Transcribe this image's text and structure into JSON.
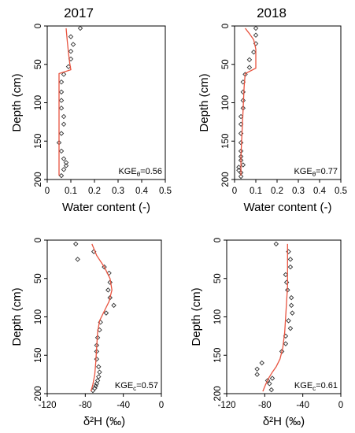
{
  "figure": {
    "titles": [
      "2017",
      "2018"
    ]
  },
  "chart_data": [
    {
      "type": "line",
      "title": "2017",
      "xlabel": "Water content (-)",
      "ylabel": "Depth (cm)",
      "xlim": [
        0,
        0.5
      ],
      "ylim": [
        200,
        0
      ],
      "xticks": [
        0,
        0.1,
        0.2,
        0.3,
        0.4,
        0.5
      ],
      "xtick_labels": [
        "0",
        "0.1",
        "0.2",
        "0.3",
        "0.4",
        "0.5"
      ],
      "yticks": [
        0,
        50,
        100,
        150,
        200
      ],
      "ytick_labels": [
        "0",
        "50",
        "100",
        "150",
        "200"
      ],
      "annotation": "KGEθ=0.56",
      "annotation_parts": {
        "main": "KGE",
        "sub": "θ",
        "rest": "=0.56"
      },
      "series": [
        {
          "kind": "observed",
          "marker": "open-diamond",
          "x": [
            0.14,
            0.1,
            0.11,
            0.1,
            0.1,
            0.09,
            0.07,
            0.06,
            0.06,
            0.06,
            0.06,
            0.07,
            0.07,
            0.06,
            0.05,
            0.06,
            0.07,
            0.08,
            0.08,
            0.07,
            0.06
          ],
          "y": [
            3,
            14,
            24,
            33,
            43,
            53,
            63,
            73,
            86,
            97,
            107,
            118,
            128,
            140,
            152,
            163,
            173,
            178,
            182,
            187,
            195
          ]
        },
        {
          "kind": "simulated",
          "x": [
            0.08,
            0.085,
            0.09,
            0.095,
            0.1,
            0.05,
            0.05,
            0.05,
            0.05,
            0.05,
            0.05
          ],
          "y": [
            3,
            20,
            35,
            48,
            57,
            62,
            80,
            110,
            140,
            170,
            195
          ]
        }
      ]
    },
    {
      "type": "line",
      "title": "2018",
      "xlabel": "Water content (-)",
      "ylabel": "Depth (cm)",
      "xlim": [
        0,
        0.5
      ],
      "ylim": [
        200,
        0
      ],
      "xticks": [
        0,
        0.1,
        0.2,
        0.3,
        0.4,
        0.5
      ],
      "xtick_labels": [
        "0",
        "0.1",
        "0.2",
        "0.3",
        "0.4",
        "0.5"
      ],
      "yticks": [
        0,
        50,
        100,
        150,
        200
      ],
      "ytick_labels": [
        "0",
        "50",
        "100",
        "150",
        "200"
      ],
      "annotation": "KGEθ=0.77",
      "annotation_parts": {
        "main": "KGE",
        "sub": "θ",
        "rest": "=0.77"
      },
      "series": [
        {
          "kind": "observed",
          "marker": "open-diamond",
          "x": [
            0.1,
            0.1,
            0.1,
            0.09,
            0.07,
            0.07,
            0.05,
            0.04,
            0.04,
            0.04,
            0.04,
            0.03,
            0.03,
            0.03,
            0.03,
            0.03,
            0.03,
            0.03,
            0.04,
            0.02,
            0.02,
            0.03,
            0.03
          ],
          "y": [
            3,
            12,
            23,
            34,
            44,
            54,
            63,
            73,
            86,
            97,
            107,
            118,
            128,
            140,
            152,
            163,
            170,
            175,
            181,
            184,
            188,
            191,
            196
          ]
        },
        {
          "kind": "simulated",
          "x": [
            0.05,
            0.07,
            0.09,
            0.1,
            0.1,
            0.05,
            0.045,
            0.04,
            0.035,
            0.03,
            0.03
          ],
          "y": [
            3,
            10,
            18,
            30,
            55,
            62,
            80,
            110,
            140,
            170,
            195
          ]
        }
      ]
    },
    {
      "type": "line",
      "xlabel": "δ²H (‰)",
      "ylabel": "Depth (cm)",
      "xlim": [
        -120,
        0
      ],
      "ylim": [
        200,
        0
      ],
      "xticks": [
        -120,
        -80,
        -40,
        0
      ],
      "xtick_labels": [
        "-120",
        "-80",
        "-40",
        "0"
      ],
      "yticks": [
        0,
        50,
        100,
        150,
        200
      ],
      "ytick_labels": [
        "0",
        "50",
        "100",
        "150",
        "200"
      ],
      "annotation": "KGEc=0.57",
      "annotation_parts": {
        "main": "KGE",
        "sub": "c",
        "rest": "=0.57"
      },
      "series": [
        {
          "kind": "observed",
          "marker": "open-diamond",
          "x": [
            -90,
            -88,
            -71,
            -60,
            -55,
            -54,
            -56,
            -54,
            -50,
            -58,
            -64,
            -65,
            -67,
            -68,
            -68,
            -68,
            -66,
            -65,
            -66,
            -67,
            -68,
            -69,
            -70,
            -72
          ],
          "y": [
            5,
            25,
            15,
            35,
            43,
            55,
            65,
            75,
            85,
            95,
            107,
            117,
            127,
            137,
            145,
            155,
            165,
            172,
            178,
            183,
            187,
            190,
            193,
            196
          ]
        },
        {
          "kind": "simulated",
          "x": [
            -73,
            -68,
            -60,
            -54,
            -52,
            -55,
            -61,
            -65,
            -67,
            -68,
            -69,
            -70,
            -72,
            -74
          ],
          "y": [
            5,
            20,
            35,
            50,
            65,
            80,
            95,
            105,
            120,
            140,
            160,
            175,
            188,
            197
          ]
        }
      ]
    },
    {
      "type": "line",
      "xlabel": "δ²H (‰)",
      "ylabel": "Depth (cm)",
      "xlim": [
        -120,
        0
      ],
      "ylim": [
        200,
        0
      ],
      "xticks": [
        -120,
        -80,
        -40,
        0
      ],
      "xtick_labels": [
        "-120",
        "-80",
        "-40",
        "0"
      ],
      "yticks": [
        0,
        50,
        100,
        150,
        200
      ],
      "ytick_labels": [
        "0",
        "50",
        "100",
        "150",
        "200"
      ],
      "annotation": "KGEc=0.61",
      "annotation_parts": {
        "main": "KGE",
        "sub": "c",
        "rest": "=0.61"
      },
      "series": [
        {
          "kind": "observed",
          "marker": "open-diamond",
          "x": [
            -68,
            -55,
            -53,
            -53,
            -58,
            -57,
            -56,
            -52,
            -52,
            -51,
            -55,
            -53,
            -58,
            -58,
            -62,
            -83,
            -88,
            -88,
            -72,
            -77,
            -75,
            -73
          ],
          "y": [
            5,
            15,
            25,
            35,
            45,
            55,
            65,
            75,
            85,
            95,
            105,
            115,
            125,
            135,
            145,
            160,
            168,
            175,
            180,
            183,
            187,
            195
          ]
        },
        {
          "kind": "simulated",
          "x": [
            -56,
            -56,
            -56,
            -56,
            -57,
            -58,
            -59,
            -61,
            -64,
            -68,
            -72,
            -76,
            -79,
            -82
          ],
          "y": [
            5,
            20,
            40,
            60,
            80,
            100,
            120,
            140,
            155,
            165,
            172,
            180,
            188,
            197
          ]
        }
      ]
    }
  ]
}
